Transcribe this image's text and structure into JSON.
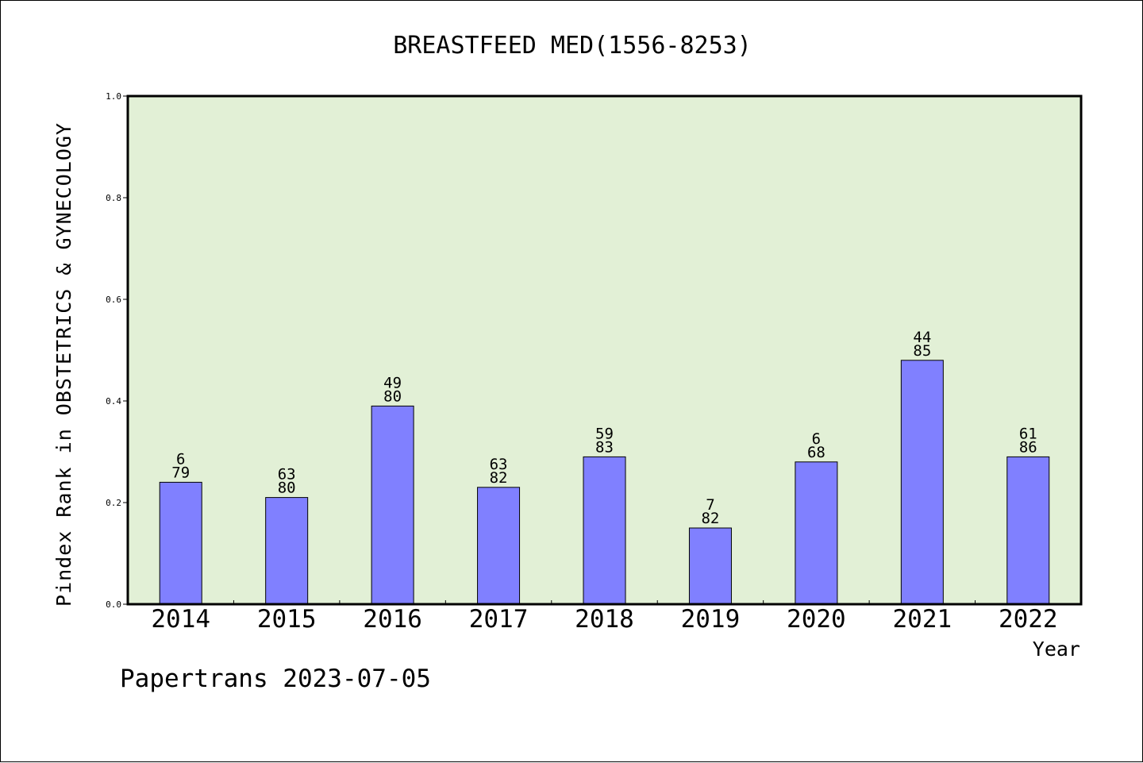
{
  "chart_data": {
    "type": "bar",
    "title": "BREASTFEED MED(1556-8253)",
    "xlabel": "Year",
    "ylabel": "Pindex Rank in OBSTETRICS & GYNECOLOGY",
    "ylim": [
      0,
      1.0
    ],
    "yticks": [
      "0.0",
      "0.2",
      "0.4",
      "0.6",
      "0.8",
      "1.0"
    ],
    "grid": false,
    "plot_background": "#e2f0d6",
    "bar_color": "#8080ff",
    "categories": [
      "2014",
      "2015",
      "2016",
      "2017",
      "2018",
      "2019",
      "2020",
      "2021",
      "2022"
    ],
    "values": [
      0.24,
      0.21,
      0.39,
      0.23,
      0.29,
      0.15,
      0.28,
      0.48,
      0.29
    ],
    "labels_top": [
      "6",
      "63",
      "49",
      "63",
      "59",
      "7",
      "6",
      "44",
      "61"
    ],
    "labels_bottom": [
      "79",
      "80",
      "80",
      "82",
      "83",
      "82",
      "68",
      "85",
      "86"
    ]
  },
  "footer": {
    "text": "Papertrans 2023-07-05"
  }
}
